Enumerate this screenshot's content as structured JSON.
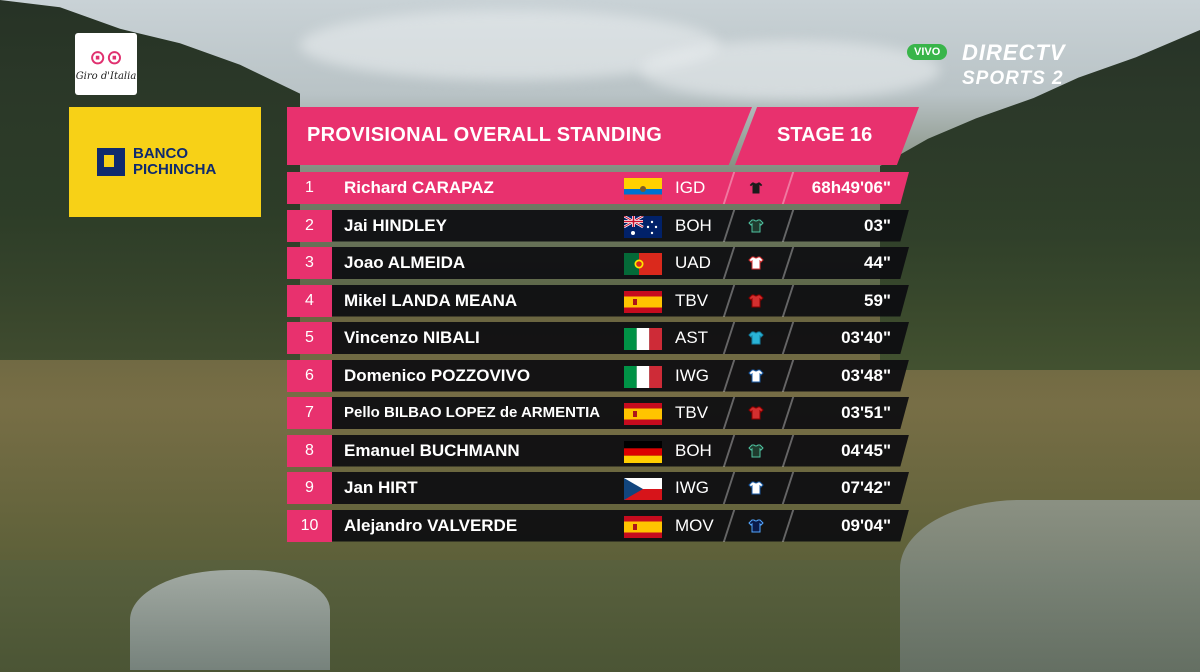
{
  "logos": {
    "race": "Giro d'Italia",
    "sponsor_line1": "BANCO",
    "sponsor_line2": "PICHINCHA",
    "live_badge": "VIVO",
    "broadcaster_line1": "DIRECTV",
    "broadcaster_line2": "SPORTS 2"
  },
  "standings": {
    "title": "PROVISIONAL OVERALL STANDING",
    "stage": "STAGE 16",
    "accent_color": "#e8316e",
    "rows": [
      {
        "pos": "1",
        "rider": "Richard CARAPAZ",
        "flag": "ecuador-flag",
        "team": "IGD",
        "jersey": "ineos-jersey-icon",
        "time": "68h49'06\""
      },
      {
        "pos": "2",
        "rider": "Jai HINDLEY",
        "flag": "australia-flag",
        "team": "BOH",
        "jersey": "bora-jersey-icon",
        "time": "03\""
      },
      {
        "pos": "3",
        "rider": "Joao ALMEIDA",
        "flag": "portugal-flag",
        "team": "UAD",
        "jersey": "uae-jersey-icon",
        "time": "44\""
      },
      {
        "pos": "4",
        "rider": "Mikel LANDA MEANA",
        "flag": "spain-flag",
        "team": "TBV",
        "jersey": "bahrain-jersey-icon",
        "time": "59\""
      },
      {
        "pos": "5",
        "rider": "Vincenzo NIBALI",
        "flag": "italy-flag",
        "team": "AST",
        "jersey": "astana-jersey-icon",
        "time": "03'40\""
      },
      {
        "pos": "6",
        "rider": "Domenico POZZOVIVO",
        "flag": "italy-flag",
        "team": "IWG",
        "jersey": "intermarche-jersey-icon",
        "time": "03'48\""
      },
      {
        "pos": "7",
        "rider": "Pello BILBAO LOPEZ de ARMENTIA",
        "flag": "spain-flag",
        "team": "TBV",
        "jersey": "bahrain-jersey-icon",
        "time": "03'51\""
      },
      {
        "pos": "8",
        "rider": "Emanuel BUCHMANN",
        "flag": "germany-flag",
        "team": "BOH",
        "jersey": "bora-jersey-icon",
        "time": "04'45\""
      },
      {
        "pos": "9",
        "rider": "Jan HIRT",
        "flag": "czechia-flag",
        "team": "IWG",
        "jersey": "intermarche-jersey-icon",
        "time": "07'42\""
      },
      {
        "pos": "10",
        "rider": "Alejandro VALVERDE",
        "flag": "spain-flag",
        "team": "MOV",
        "jersey": "movistar-jersey-icon",
        "time": "09'04\""
      }
    ]
  }
}
